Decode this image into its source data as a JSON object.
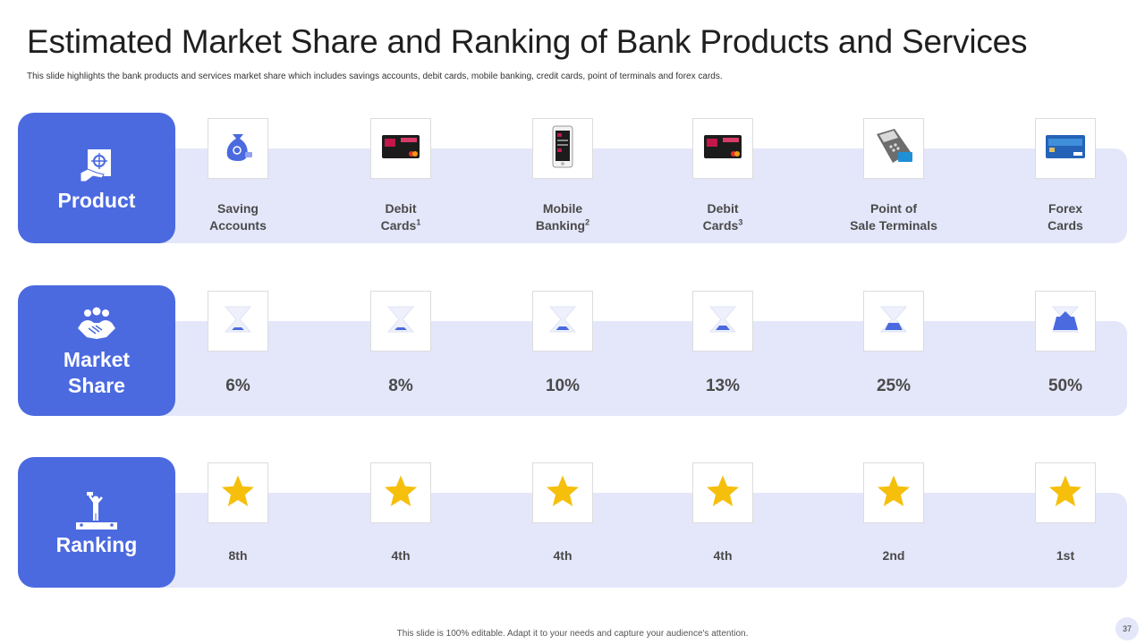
{
  "title": "Estimated Market Share and Ranking of Bank Products and Services",
  "subtitle": "This slide highlights the bank products and services market share which includes savings accounts, debit cards, mobile banking, credit cards, point of terminals and forex cards.",
  "rows": {
    "product": {
      "label": "Product",
      "icon": "hand-globe-icon"
    },
    "market_share": {
      "label_line1": "Market",
      "label_line2": "Share",
      "icon": "handshake-icon"
    },
    "ranking": {
      "label": "Ranking",
      "icon": "podium-winner-icon"
    }
  },
  "products": [
    {
      "line1": "Saving",
      "line2": "Accounts",
      "sup": "",
      "icon": "money-bag-icon",
      "share": "6%",
      "share_fraction": 0.06,
      "rank": "8th"
    },
    {
      "line1": "Debit",
      "line2": "Cards",
      "sup": "1",
      "icon": "debit-card-icon",
      "share": "8%",
      "share_fraction": 0.08,
      "rank": "4th"
    },
    {
      "line1": "Mobile",
      "line2": "Banking",
      "sup": "2",
      "icon": "mobile-phone-icon",
      "share": "10%",
      "share_fraction": 0.1,
      "rank": "4th"
    },
    {
      "line1": "Debit",
      "line2": "Cards",
      "sup": "3",
      "icon": "debit-card-icon",
      "share": "13%",
      "share_fraction": 0.13,
      "rank": "4th"
    },
    {
      "line1": "Point of",
      "line2": "Sale Terminals",
      "sup": "",
      "icon": "pos-terminal-icon",
      "share": "25%",
      "share_fraction": 0.25,
      "rank": "2nd"
    },
    {
      "line1": "Forex",
      "line2": "Cards",
      "sup": "",
      "icon": "forex-card-icon",
      "share": "50%",
      "share_fraction": 0.5,
      "rank": "1st"
    }
  ],
  "colors": {
    "accent": "#4b6ae0",
    "band": "#e4e7fa",
    "star": "#f5bf0c"
  },
  "footer": "This slide is 100% editable. Adapt it to your needs and capture your audience's attention.",
  "page_number": "37"
}
